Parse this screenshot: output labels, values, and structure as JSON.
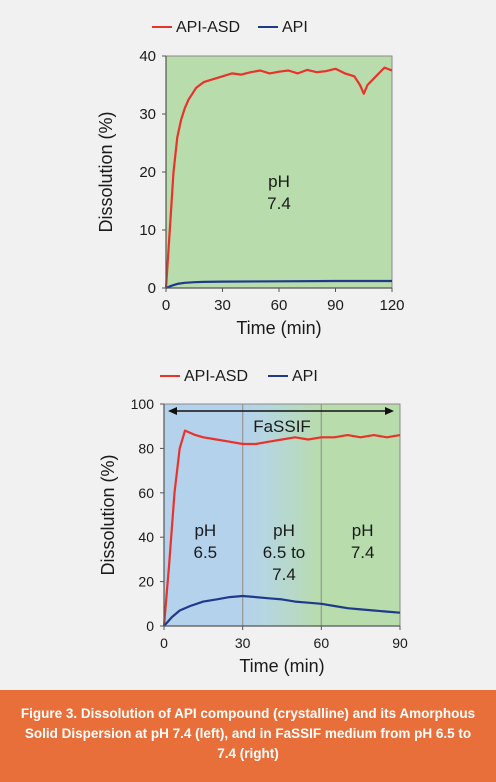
{
  "caption": "Figure 3. Dissolution of API compound (crystalline) and its Amorphous Solid Dispersion at pH 7.4 (left), and in FaSSIF medium from pH 6.5 to 7.4 (right)",
  "colors": {
    "api_asd": "#e8322a",
    "api": "#1f3a8a",
    "green": "#b8dcac",
    "blue": "#b4d2ec",
    "caption_bg": "#e96f3a"
  },
  "chart_data": [
    {
      "type": "line",
      "xlabel": "Time (min)",
      "ylabel": "Dissolution (%)",
      "xlim": [
        0,
        120
      ],
      "ylim": [
        0,
        40
      ],
      "xticks": [
        0,
        30,
        60,
        90,
        120
      ],
      "yticks": [
        0,
        10,
        20,
        30,
        40
      ],
      "regions": [
        {
          "lines": [
            "pH",
            "7.4"
          ],
          "x_start": 0,
          "x_end": 120
        }
      ],
      "series": [
        {
          "name": "API-ASD",
          "color": "#e8322a",
          "x": [
            0,
            2,
            4,
            6,
            8,
            10,
            12,
            14,
            16,
            18,
            20,
            25,
            30,
            35,
            40,
            45,
            50,
            55,
            60,
            65,
            70,
            75,
            80,
            85,
            90,
            95,
            100,
            103,
            105,
            107,
            110,
            113,
            116,
            120
          ],
          "y": [
            0,
            10,
            20,
            26,
            29,
            31,
            32.5,
            33.5,
            34.5,
            35,
            35.5,
            36,
            36.5,
            37,
            36.8,
            37.2,
            37.5,
            37,
            37.3,
            37.5,
            37,
            37.6,
            37.2,
            37.4,
            37.8,
            37,
            36.5,
            35,
            33.5,
            35,
            36,
            37,
            38,
            37.5
          ]
        },
        {
          "name": "API",
          "color": "#1f3a8a",
          "x": [
            0,
            3,
            6,
            10,
            15,
            20,
            30,
            60,
            90,
            120
          ],
          "y": [
            0,
            0.4,
            0.7,
            0.9,
            1.0,
            1.05,
            1.1,
            1.15,
            1.2,
            1.2
          ]
        }
      ]
    },
    {
      "type": "line",
      "xlabel": "Time (min)",
      "ylabel": "Dissolution (%)",
      "xlim": [
        0,
        90
      ],
      "ylim": [
        0,
        100
      ],
      "xticks": [
        0,
        30,
        60,
        90
      ],
      "yticks": [
        0,
        20,
        40,
        60,
        80,
        100
      ],
      "annotation": "FaSSIF",
      "dividers": [
        30,
        60
      ],
      "regions": [
        {
          "lines": [
            "pH",
            "6.5"
          ],
          "x_start": 0,
          "x_end": 30
        },
        {
          "lines": [
            "pH",
            "6.5 to",
            "7.4"
          ],
          "x_start": 30,
          "x_end": 60
        },
        {
          "lines": [
            "pH",
            "7.4"
          ],
          "x_start": 60,
          "x_end": 90
        }
      ],
      "series": [
        {
          "name": "API-ASD",
          "color": "#e8322a",
          "x": [
            0,
            2,
            4,
            6,
            8,
            10,
            12,
            15,
            20,
            25,
            30,
            35,
            40,
            45,
            50,
            55,
            60,
            65,
            70,
            75,
            80,
            85,
            90
          ],
          "y": [
            0,
            28,
            60,
            80,
            88,
            87,
            86,
            85,
            84,
            83,
            82,
            82,
            83,
            84,
            85,
            84,
            85,
            85,
            86,
            85,
            86,
            85,
            86
          ]
        },
        {
          "name": "API",
          "color": "#1f3a8a",
          "x": [
            0,
            3,
            6,
            10,
            15,
            20,
            25,
            30,
            35,
            40,
            45,
            50,
            55,
            60,
            65,
            70,
            75,
            80,
            85,
            90
          ],
          "y": [
            0,
            4,
            7,
            9,
            11,
            12,
            13,
            13.5,
            13,
            12.5,
            12,
            11,
            10.5,
            10,
            9,
            8,
            7.5,
            7,
            6.5,
            6
          ]
        }
      ]
    }
  ]
}
